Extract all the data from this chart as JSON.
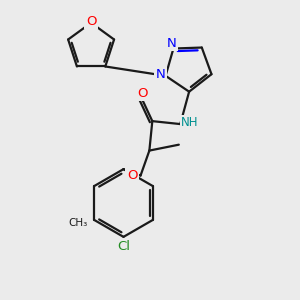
{
  "bg_color": "#ebebeb",
  "bond_color": "#1a1a1a",
  "bond_width": 1.6,
  "figsize": [
    3.0,
    3.0
  ],
  "dpi": 100,
  "xlim": [
    0,
    10
  ],
  "ylim": [
    0,
    10
  ]
}
